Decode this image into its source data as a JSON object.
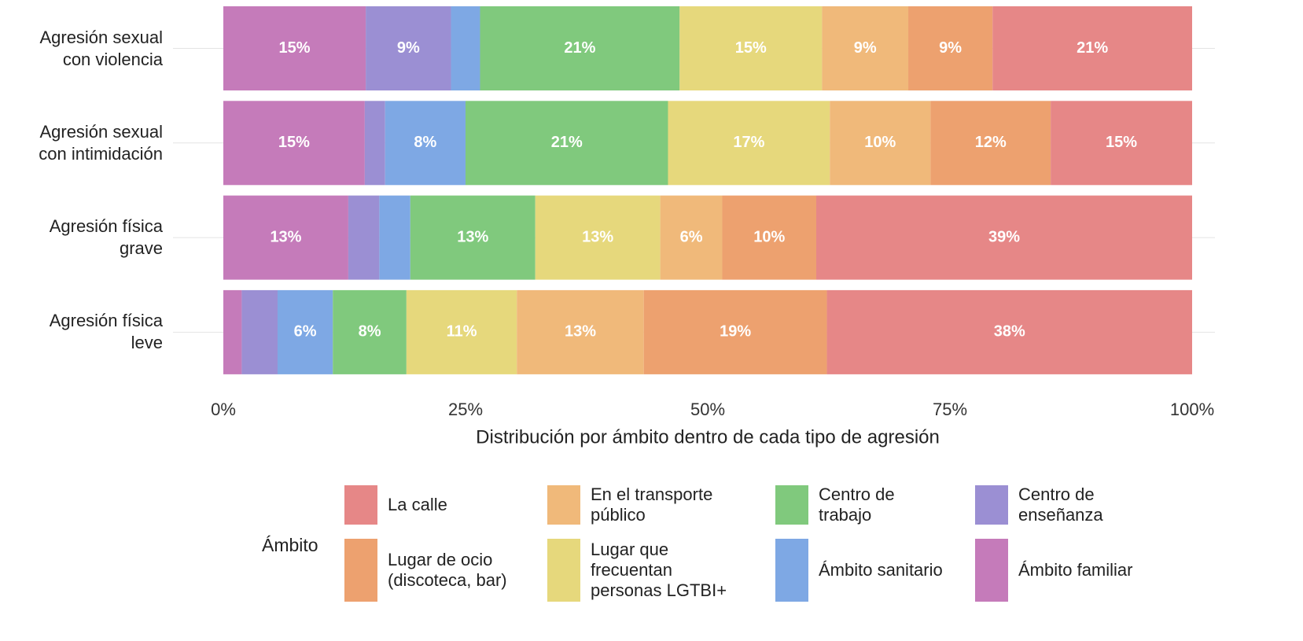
{
  "chart_data": {
    "type": "stacked_bar_horizontal",
    "categories": [
      "Agresión sexual\ncon violencia",
      "Agresión sexual\ncon intimidación",
      "Agresión física\ngrave",
      "Agresión física\nleve"
    ],
    "series": [
      {
        "name": "Ámbito familiar",
        "color": "#c57bba",
        "values": [
          14.7,
          14.6,
          12.9,
          1.9
        ],
        "value_labels": [
          "15%",
          "15%",
          "13%",
          null
        ]
      },
      {
        "name": "Centro de\nenseñanza",
        "color": "#9b8fd3",
        "values": [
          8.8,
          2.1,
          3.2,
          3.7
        ],
        "value_labels": [
          "9%",
          null,
          null,
          null
        ]
      },
      {
        "name": "Ámbito sanitario",
        "color": "#7ea8e4",
        "values": [
          3.0,
          8.3,
          3.2,
          5.7
        ],
        "value_labels": [
          null,
          "8%",
          null,
          "6%"
        ]
      },
      {
        "name": "Centro de\ntrabajo",
        "color": "#80c97d",
        "values": [
          20.6,
          20.9,
          12.9,
          7.6
        ],
        "value_labels": [
          "21%",
          "21%",
          "13%",
          "8%"
        ]
      },
      {
        "name": "Lugar que\nfrecuentan\npersonas LGTBI+",
        "color": "#e6d87c",
        "values": [
          14.7,
          16.7,
          12.9,
          11.4
        ],
        "value_labels": [
          "15%",
          "17%",
          "13%",
          "11%"
        ]
      },
      {
        "name": "En el transporte\npúblico",
        "color": "#f0b97a",
        "values": [
          8.9,
          10.4,
          6.4,
          13.1
        ],
        "value_labels": [
          "9%",
          "10%",
          "6%",
          "13%"
        ]
      },
      {
        "name": "Lugar de ocio\n(discoteca, bar)",
        "color": "#eda16f",
        "values": [
          8.7,
          12.4,
          9.7,
          18.9
        ],
        "value_labels": [
          "9%",
          "12%",
          "10%",
          "19%"
        ]
      },
      {
        "name": "La calle",
        "color": "#e68787",
        "values": [
          20.6,
          14.6,
          38.8,
          37.7
        ],
        "value_labels": [
          "21%",
          "15%",
          "39%",
          "38%"
        ]
      }
    ],
    "xlabel": "Distribución por ámbito dentro de cada tipo de agresión",
    "legend_title": "Ámbito",
    "xlim": [
      0,
      100
    ],
    "xticks": [
      {
        "value": 0,
        "label": "0%"
      },
      {
        "value": 25,
        "label": "25%"
      },
      {
        "value": 50,
        "label": "50%"
      },
      {
        "value": 75,
        "label": "75%"
      },
      {
        "value": 100,
        "label": "100%"
      }
    ],
    "grid": true
  }
}
